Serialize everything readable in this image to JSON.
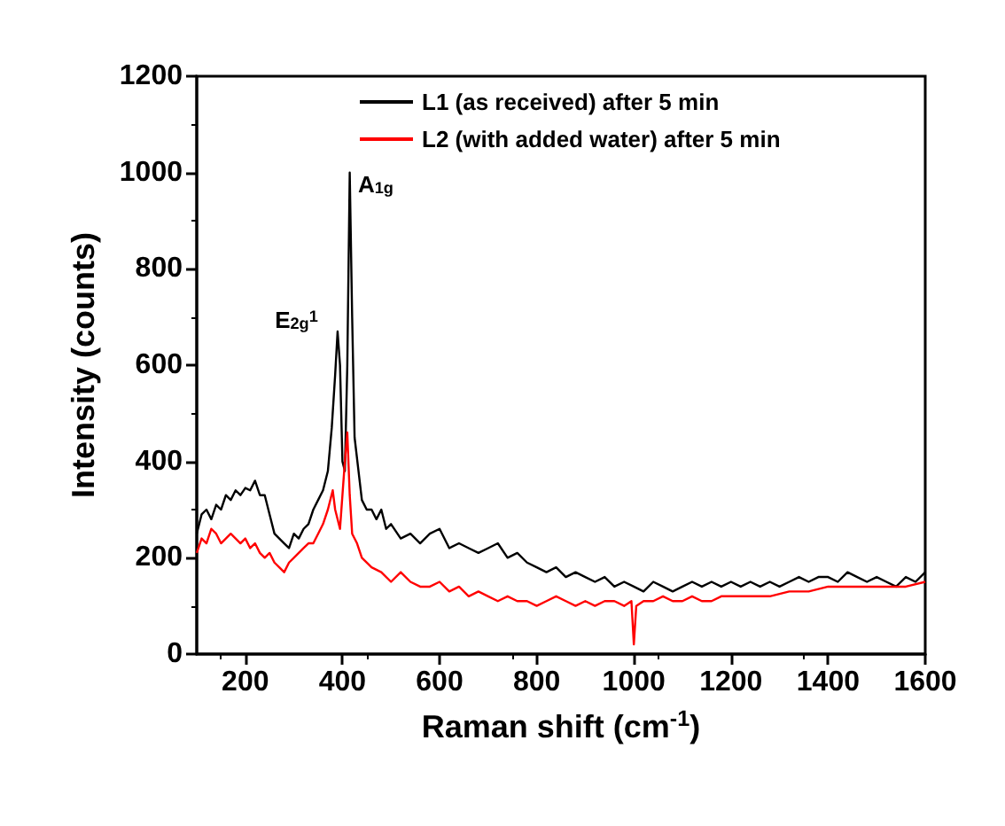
{
  "chart_data": {
    "type": "line",
    "xlabel": "Raman shift (cm$^{-1}$)",
    "ylabel": "Intensity (counts)",
    "xlim": [
      100,
      1600
    ],
    "xticks": [
      200,
      400,
      600,
      800,
      1000,
      1200,
      1400,
      1600
    ],
    "ylim": [
      0,
      1200
    ],
    "yticks": [
      0,
      200,
      400,
      600,
      800,
      1000,
      1200
    ],
    "grid": false,
    "legend": "top",
    "marker": "none",
    "line_style": "solid",
    "series": [
      {
        "name": "L1 (as received) after 5 min",
        "color": "#000000",
        "x": [
          100,
          110,
          120,
          130,
          140,
          150,
          160,
          170,
          180,
          190,
          200,
          210,
          220,
          230,
          240,
          250,
          260,
          270,
          280,
          290,
          300,
          310,
          320,
          330,
          340,
          350,
          360,
          370,
          378,
          385,
          390,
          395,
          400,
          405,
          410,
          415,
          420,
          425,
          440,
          450,
          460,
          470,
          480,
          490,
          500,
          520,
          540,
          560,
          580,
          600,
          620,
          640,
          660,
          680,
          700,
          720,
          740,
          760,
          780,
          800,
          820,
          840,
          860,
          880,
          900,
          920,
          940,
          960,
          980,
          1000,
          1020,
          1040,
          1060,
          1080,
          1100,
          1120,
          1140,
          1160,
          1180,
          1200,
          1220,
          1240,
          1260,
          1280,
          1300,
          1320,
          1340,
          1360,
          1380,
          1400,
          1420,
          1440,
          1460,
          1480,
          1500,
          1520,
          1540,
          1560,
          1580,
          1600
        ],
        "values": [
          250,
          290,
          300,
          280,
          310,
          300,
          330,
          320,
          340,
          330,
          345,
          340,
          360,
          330,
          330,
          290,
          250,
          240,
          230,
          220,
          250,
          240,
          260,
          270,
          300,
          320,
          340,
          380,
          470,
          580,
          670,
          600,
          400,
          380,
          600,
          1000,
          700,
          450,
          320,
          300,
          300,
          280,
          300,
          260,
          270,
          240,
          250,
          230,
          250,
          260,
          220,
          230,
          220,
          210,
          220,
          230,
          200,
          210,
          190,
          180,
          170,
          180,
          160,
          170,
          160,
          150,
          160,
          140,
          150,
          140,
          130,
          150,
          140,
          130,
          140,
          150,
          140,
          150,
          140,
          150,
          140,
          150,
          140,
          150,
          140,
          150,
          160,
          150,
          160,
          160,
          150,
          170,
          160,
          150,
          160,
          150,
          140,
          160,
          150,
          170
        ]
      },
      {
        "name": "L2 (with added water) after 5 min",
        "color": "#ff0000",
        "x": [
          100,
          110,
          120,
          130,
          140,
          150,
          160,
          170,
          180,
          190,
          200,
          210,
          220,
          230,
          240,
          250,
          260,
          270,
          280,
          290,
          300,
          310,
          320,
          330,
          340,
          350,
          360,
          370,
          380,
          385,
          395,
          400,
          405,
          410,
          415,
          420,
          430,
          440,
          460,
          480,
          500,
          520,
          540,
          560,
          580,
          600,
          620,
          640,
          660,
          680,
          700,
          720,
          740,
          760,
          780,
          800,
          820,
          840,
          860,
          880,
          900,
          920,
          940,
          960,
          980,
          995,
          1000,
          1005,
          1020,
          1040,
          1060,
          1080,
          1100,
          1120,
          1140,
          1160,
          1180,
          1200,
          1240,
          1280,
          1320,
          1360,
          1400,
          1440,
          1480,
          1520,
          1560,
          1600
        ],
        "values": [
          210,
          240,
          230,
          260,
          250,
          230,
          240,
          250,
          240,
          230,
          240,
          220,
          230,
          210,
          200,
          210,
          190,
          180,
          170,
          190,
          200,
          210,
          220,
          230,
          230,
          250,
          270,
          300,
          340,
          300,
          260,
          330,
          400,
          460,
          330,
          250,
          230,
          200,
          180,
          170,
          150,
          170,
          150,
          140,
          140,
          150,
          130,
          140,
          120,
          130,
          120,
          110,
          120,
          110,
          110,
          100,
          110,
          120,
          110,
          100,
          110,
          100,
          110,
          110,
          100,
          110,
          20,
          100,
          110,
          110,
          120,
          110,
          110,
          120,
          110,
          110,
          120,
          120,
          120,
          120,
          130,
          130,
          140,
          140,
          140,
          140,
          140,
          150
        ]
      }
    ],
    "annotations": [
      {
        "text": "E$_{2g}$$^{1}$",
        "x": 385,
        "y": 670
      },
      {
        "text": "A$_{1g}$",
        "x": 410,
        "y": 1000
      }
    ]
  }
}
